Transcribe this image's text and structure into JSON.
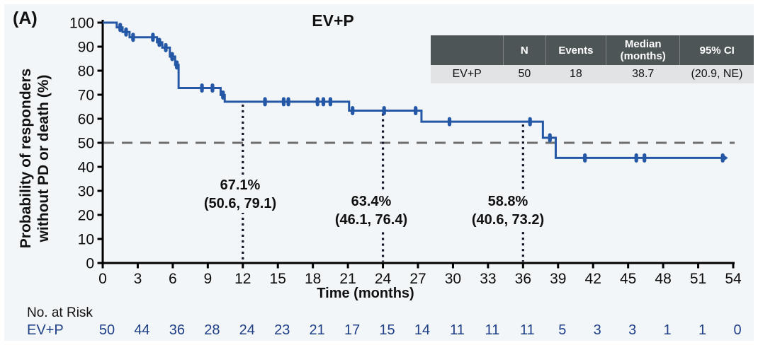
{
  "panel_label": "(A)",
  "title": "EV+P",
  "colors": {
    "background": "#f3f6f8",
    "curve": "#2457a5",
    "risk_text": "#1e3f86",
    "dashed_reference": "#6e6e6e",
    "landmark_dotted": "#14142b",
    "table_header_bg": "#4e5557",
    "table_row_bg": "#e1e3e5"
  },
  "summary_table": {
    "headers": [
      "",
      "N",
      "Events",
      "Median (months)",
      "95% CI"
    ],
    "rows": [
      [
        "EV+P",
        "50",
        "18",
        "38.7",
        "(20.9, NE)"
      ]
    ]
  },
  "chart_data": {
    "type": "line",
    "subtype": "kaplan-meier-step",
    "title": "EV+P",
    "xlabel": "Time (months)",
    "ylabel_lines": [
      "Probability of responders",
      "without PD or death (%)"
    ],
    "xlim": [
      0,
      54
    ],
    "ylim": [
      0,
      100
    ],
    "x_ticks": [
      0,
      3,
      6,
      9,
      12,
      15,
      18,
      21,
      24,
      27,
      30,
      33,
      36,
      39,
      42,
      45,
      48,
      51,
      54
    ],
    "y_ticks": [
      0,
      10,
      20,
      30,
      40,
      50,
      60,
      70,
      80,
      90,
      100
    ],
    "grid": false,
    "reference_line_y": 50,
    "series": [
      {
        "name": "EV+P",
        "color": "#2457a5",
        "steps": [
          [
            0,
            100
          ],
          [
            1.2,
            98
          ],
          [
            1.7,
            96.1
          ],
          [
            2.3,
            93.9
          ],
          [
            4.65,
            91.8
          ],
          [
            5.1,
            89.6
          ],
          [
            5.75,
            85.9
          ],
          [
            6.2,
            82.4
          ],
          [
            6.5,
            72.8
          ],
          [
            10.1,
            69.9
          ],
          [
            10.45,
            67.1
          ],
          [
            21.1,
            63.4
          ],
          [
            27.3,
            58.8
          ],
          [
            37.7,
            52.1
          ],
          [
            38.8,
            43.7
          ]
        ],
        "end_time": 53.1,
        "censor_marks": [
          [
            1.5,
            98
          ],
          [
            2.0,
            96.1
          ],
          [
            2.6,
            93.9
          ],
          [
            4.3,
            93.9
          ],
          [
            4.85,
            91.8
          ],
          [
            5.4,
            89.6
          ],
          [
            5.95,
            85.9
          ],
          [
            6.35,
            82.4
          ],
          [
            8.5,
            72.8
          ],
          [
            9.4,
            72.8
          ],
          [
            10.3,
            69.9
          ],
          [
            13.9,
            67.1
          ],
          [
            15.5,
            67.1
          ],
          [
            15.9,
            67.1
          ],
          [
            18.4,
            67.1
          ],
          [
            18.9,
            67.1
          ],
          [
            19.5,
            67.1
          ],
          [
            21.4,
            63.4
          ],
          [
            24.1,
            63.4
          ],
          [
            26.8,
            63.4
          ],
          [
            29.7,
            58.8
          ],
          [
            36.6,
            58.8
          ],
          [
            38.3,
            52.1
          ],
          [
            41.3,
            43.7
          ],
          [
            45.7,
            43.7
          ],
          [
            46.4,
            43.7
          ],
          [
            53.1,
            43.7
          ]
        ]
      }
    ],
    "annotations": [
      {
        "time": 12,
        "rate": "67.1%",
        "ci": "(50.6, 79.1)"
      },
      {
        "time": 24,
        "rate": "63.4%",
        "ci": "(46.1, 76.4)"
      },
      {
        "time": 36,
        "rate": "58.8%",
        "ci": "(40.6, 73.2)"
      }
    ],
    "at_risk": {
      "label": "No. at Risk",
      "row_label": "EV+P",
      "times": [
        0,
        3,
        6,
        9,
        12,
        15,
        18,
        21,
        24,
        27,
        30,
        33,
        36,
        39,
        42,
        45,
        48,
        51,
        54
      ],
      "values": [
        50,
        44,
        36,
        28,
        24,
        23,
        21,
        17,
        15,
        14,
        11,
        11,
        11,
        5,
        3,
        3,
        1,
        1,
        0
      ]
    }
  }
}
